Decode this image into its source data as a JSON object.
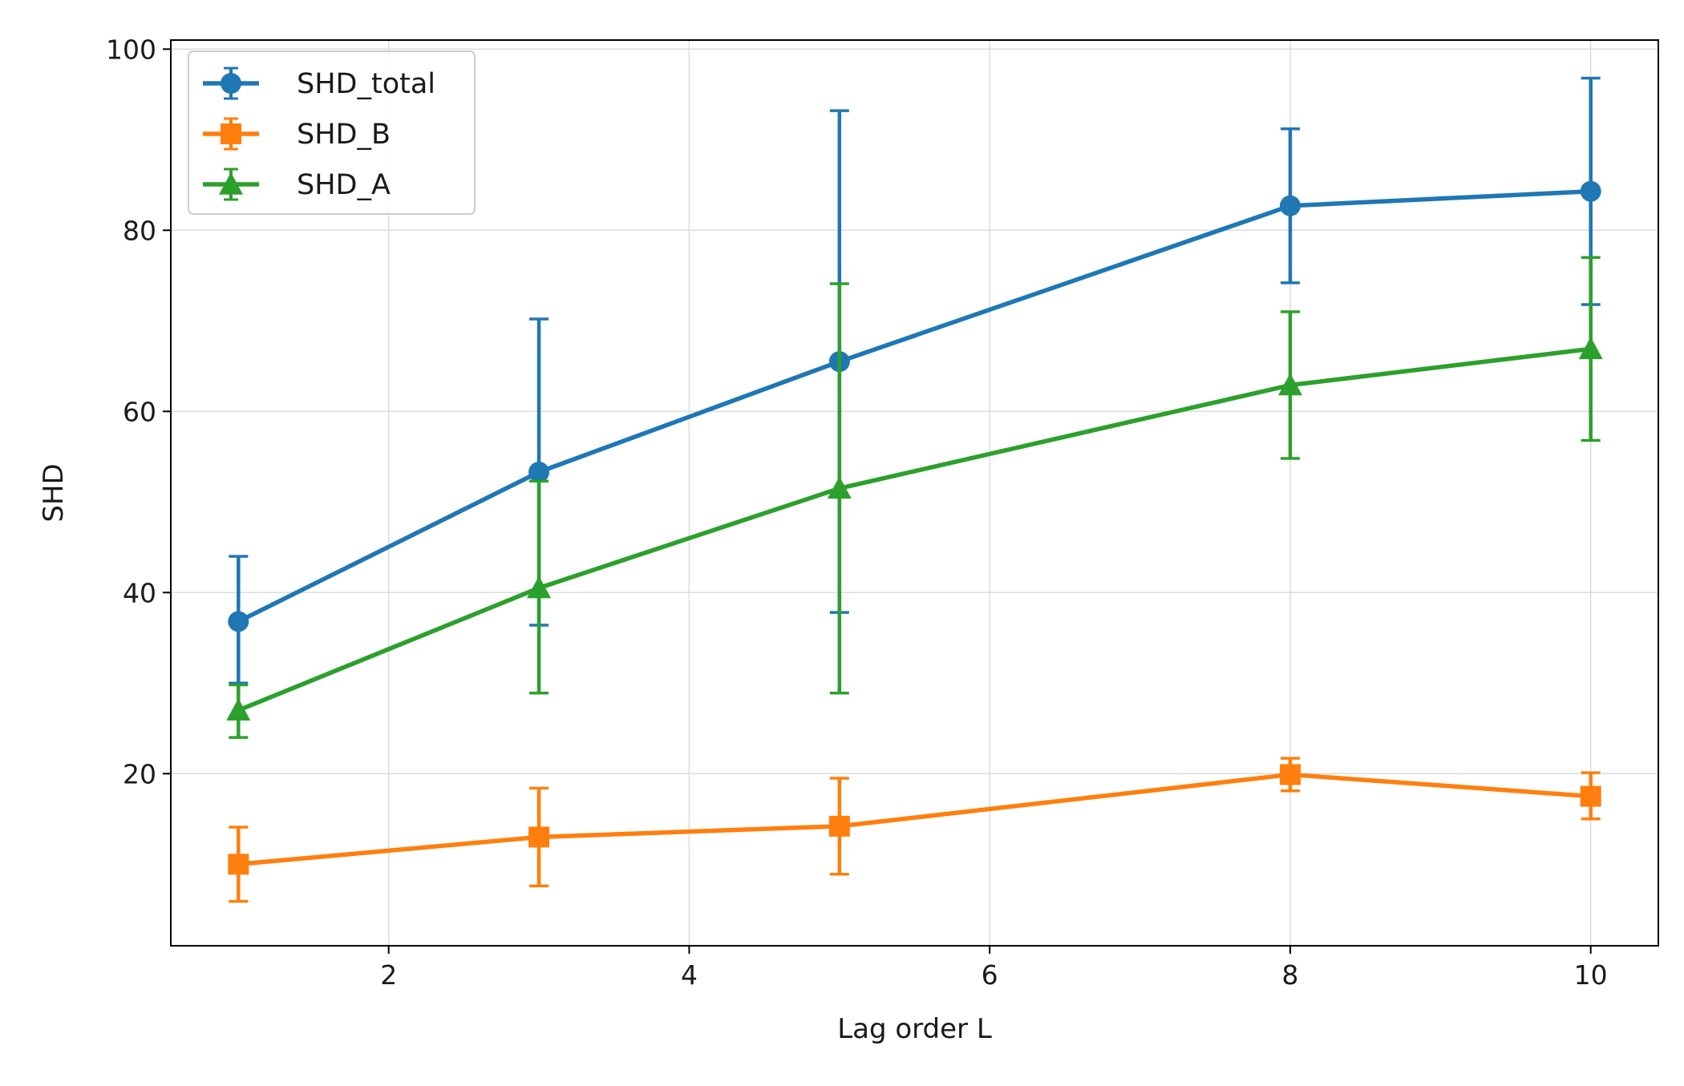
{
  "chart_data": {
    "type": "line",
    "title": "",
    "xlabel": "Lag order L",
    "ylabel": "SHD",
    "xlim": [
      0.55,
      10.45
    ],
    "ylim": [
      1,
      101
    ],
    "xticks": [
      2,
      4,
      6,
      8,
      10
    ],
    "yticks": [
      20,
      40,
      60,
      80,
      100
    ],
    "grid": true,
    "legend_position": "top-left",
    "x": [
      1,
      3,
      5,
      8,
      10
    ],
    "series": [
      {
        "name": "SHD_total",
        "color": "#1f77b4",
        "marker": "circle",
        "values": [
          36.8,
          53.3,
          65.5,
          82.7,
          84.3
        ],
        "error_low": [
          30.0,
          36.4,
          37.8,
          74.2,
          71.8
        ],
        "error_high": [
          44.0,
          70.2,
          93.2,
          91.2,
          96.8
        ]
      },
      {
        "name": "SHD_B",
        "color": "#ff7f0e",
        "marker": "square",
        "values": [
          10.0,
          13.0,
          14.2,
          19.9,
          17.5
        ],
        "error_low": [
          5.9,
          7.6,
          8.9,
          18.1,
          15.0
        ],
        "error_high": [
          14.1,
          18.4,
          19.5,
          21.7,
          20.1
        ]
      },
      {
        "name": "SHD_A",
        "color": "#2ca02c",
        "marker": "triangle",
        "values": [
          27.0,
          40.5,
          51.5,
          62.9,
          66.9
        ],
        "error_low": [
          24.0,
          28.9,
          28.9,
          54.8,
          56.8
        ],
        "error_high": [
          29.8,
          52.3,
          74.1,
          71.0,
          77.0
        ]
      }
    ]
  }
}
